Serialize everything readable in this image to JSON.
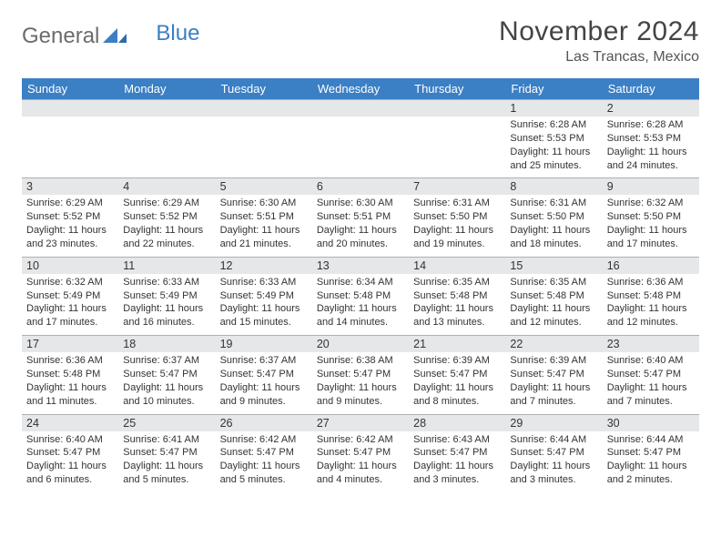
{
  "logo": {
    "text1": "General",
    "text2": "Blue"
  },
  "title": "November 2024",
  "subtitle": "Las Trancas, Mexico",
  "colors": {
    "header_bg": "#3b7fc4",
    "header_fg": "#ffffff",
    "numrow_bg": "#e5e7e9",
    "numrow_border": "#b0b0b0",
    "text": "#333333",
    "logo_gray": "#6b6b6b",
    "logo_blue": "#3b7fc4",
    "page_bg": "#ffffff"
  },
  "fonts": {
    "title_size": 30,
    "subtitle_size": 16,
    "dayhead_size": 13,
    "cell_size": 11
  },
  "day_headers": [
    "Sunday",
    "Monday",
    "Tuesday",
    "Wednesday",
    "Thursday",
    "Friday",
    "Saturday"
  ],
  "labels": {
    "sunrise": "Sunrise: ",
    "sunset": "Sunset: ",
    "daylight": "Daylight: "
  },
  "weeks": [
    [
      {
        "n": "",
        "sr": "",
        "ss": "",
        "dl": ""
      },
      {
        "n": "",
        "sr": "",
        "ss": "",
        "dl": ""
      },
      {
        "n": "",
        "sr": "",
        "ss": "",
        "dl": ""
      },
      {
        "n": "",
        "sr": "",
        "ss": "",
        "dl": ""
      },
      {
        "n": "",
        "sr": "",
        "ss": "",
        "dl": ""
      },
      {
        "n": "1",
        "sr": "6:28 AM",
        "ss": "5:53 PM",
        "dl": "11 hours and 25 minutes."
      },
      {
        "n": "2",
        "sr": "6:28 AM",
        "ss": "5:53 PM",
        "dl": "11 hours and 24 minutes."
      }
    ],
    [
      {
        "n": "3",
        "sr": "6:29 AM",
        "ss": "5:52 PM",
        "dl": "11 hours and 23 minutes."
      },
      {
        "n": "4",
        "sr": "6:29 AM",
        "ss": "5:52 PM",
        "dl": "11 hours and 22 minutes."
      },
      {
        "n": "5",
        "sr": "6:30 AM",
        "ss": "5:51 PM",
        "dl": "11 hours and 21 minutes."
      },
      {
        "n": "6",
        "sr": "6:30 AM",
        "ss": "5:51 PM",
        "dl": "11 hours and 20 minutes."
      },
      {
        "n": "7",
        "sr": "6:31 AM",
        "ss": "5:50 PM",
        "dl": "11 hours and 19 minutes."
      },
      {
        "n": "8",
        "sr": "6:31 AM",
        "ss": "5:50 PM",
        "dl": "11 hours and 18 minutes."
      },
      {
        "n": "9",
        "sr": "6:32 AM",
        "ss": "5:50 PM",
        "dl": "11 hours and 17 minutes."
      }
    ],
    [
      {
        "n": "10",
        "sr": "6:32 AM",
        "ss": "5:49 PM",
        "dl": "11 hours and 17 minutes."
      },
      {
        "n": "11",
        "sr": "6:33 AM",
        "ss": "5:49 PM",
        "dl": "11 hours and 16 minutes."
      },
      {
        "n": "12",
        "sr": "6:33 AM",
        "ss": "5:49 PM",
        "dl": "11 hours and 15 minutes."
      },
      {
        "n": "13",
        "sr": "6:34 AM",
        "ss": "5:48 PM",
        "dl": "11 hours and 14 minutes."
      },
      {
        "n": "14",
        "sr": "6:35 AM",
        "ss": "5:48 PM",
        "dl": "11 hours and 13 minutes."
      },
      {
        "n": "15",
        "sr": "6:35 AM",
        "ss": "5:48 PM",
        "dl": "11 hours and 12 minutes."
      },
      {
        "n": "16",
        "sr": "6:36 AM",
        "ss": "5:48 PM",
        "dl": "11 hours and 12 minutes."
      }
    ],
    [
      {
        "n": "17",
        "sr": "6:36 AM",
        "ss": "5:48 PM",
        "dl": "11 hours and 11 minutes."
      },
      {
        "n": "18",
        "sr": "6:37 AM",
        "ss": "5:47 PM",
        "dl": "11 hours and 10 minutes."
      },
      {
        "n": "19",
        "sr": "6:37 AM",
        "ss": "5:47 PM",
        "dl": "11 hours and 9 minutes."
      },
      {
        "n": "20",
        "sr": "6:38 AM",
        "ss": "5:47 PM",
        "dl": "11 hours and 9 minutes."
      },
      {
        "n": "21",
        "sr": "6:39 AM",
        "ss": "5:47 PM",
        "dl": "11 hours and 8 minutes."
      },
      {
        "n": "22",
        "sr": "6:39 AM",
        "ss": "5:47 PM",
        "dl": "11 hours and 7 minutes."
      },
      {
        "n": "23",
        "sr": "6:40 AM",
        "ss": "5:47 PM",
        "dl": "11 hours and 7 minutes."
      }
    ],
    [
      {
        "n": "24",
        "sr": "6:40 AM",
        "ss": "5:47 PM",
        "dl": "11 hours and 6 minutes."
      },
      {
        "n": "25",
        "sr": "6:41 AM",
        "ss": "5:47 PM",
        "dl": "11 hours and 5 minutes."
      },
      {
        "n": "26",
        "sr": "6:42 AM",
        "ss": "5:47 PM",
        "dl": "11 hours and 5 minutes."
      },
      {
        "n": "27",
        "sr": "6:42 AM",
        "ss": "5:47 PM",
        "dl": "11 hours and 4 minutes."
      },
      {
        "n": "28",
        "sr": "6:43 AM",
        "ss": "5:47 PM",
        "dl": "11 hours and 3 minutes."
      },
      {
        "n": "29",
        "sr": "6:44 AM",
        "ss": "5:47 PM",
        "dl": "11 hours and 3 minutes."
      },
      {
        "n": "30",
        "sr": "6:44 AM",
        "ss": "5:47 PM",
        "dl": "11 hours and 2 minutes."
      }
    ]
  ]
}
